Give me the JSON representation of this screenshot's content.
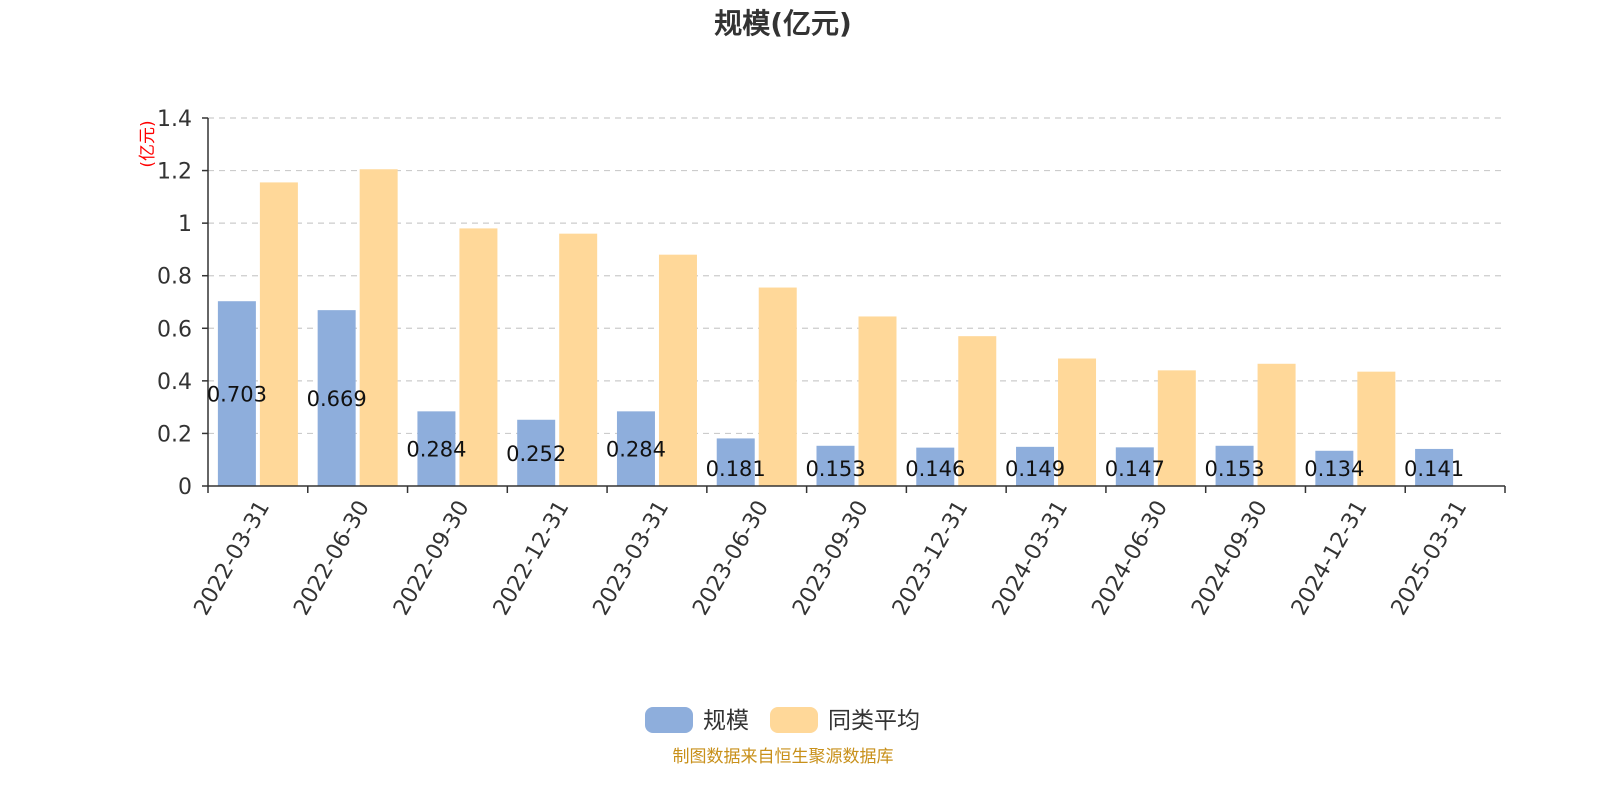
{
  "chart_data": {
    "type": "bar",
    "title": "规模(亿元)",
    "ylabel": "(亿元)",
    "ylim": [
      0,
      1.4
    ],
    "yticks": [
      "0",
      "0.2",
      "0.4",
      "0.6",
      "0.8",
      "1",
      "1.2",
      "1.4"
    ],
    "grid": true,
    "legend_position": "bottom-center",
    "categories": [
      "2022-03-31",
      "2022-06-30",
      "2022-09-30",
      "2022-12-31",
      "2023-03-31",
      "2023-06-30",
      "2023-09-30",
      "2023-12-31",
      "2024-03-31",
      "2024-06-30",
      "2024-09-30",
      "2024-12-31",
      "2025-03-31"
    ],
    "series": [
      {
        "name": "规模",
        "color": "#8eaedc",
        "values": [
          0.703,
          0.669,
          0.284,
          0.252,
          0.284,
          0.181,
          0.153,
          0.146,
          0.149,
          0.147,
          0.153,
          0.134,
          0.141
        ],
        "data_labels": [
          "0.703",
          "0.669",
          "0.284",
          "0.252",
          "0.284",
          "0.181",
          "0.153",
          "0.146",
          "0.149",
          "0.147",
          "0.153",
          "0.134",
          "0.141"
        ]
      },
      {
        "name": "同类平均",
        "color": "#ffd899",
        "values": [
          1.155,
          1.205,
          0.98,
          0.96,
          0.88,
          0.755,
          0.645,
          0.57,
          0.485,
          0.44,
          0.465,
          0.435,
          null
        ]
      }
    ],
    "source": "制图数据来自恒生聚源数据库"
  }
}
